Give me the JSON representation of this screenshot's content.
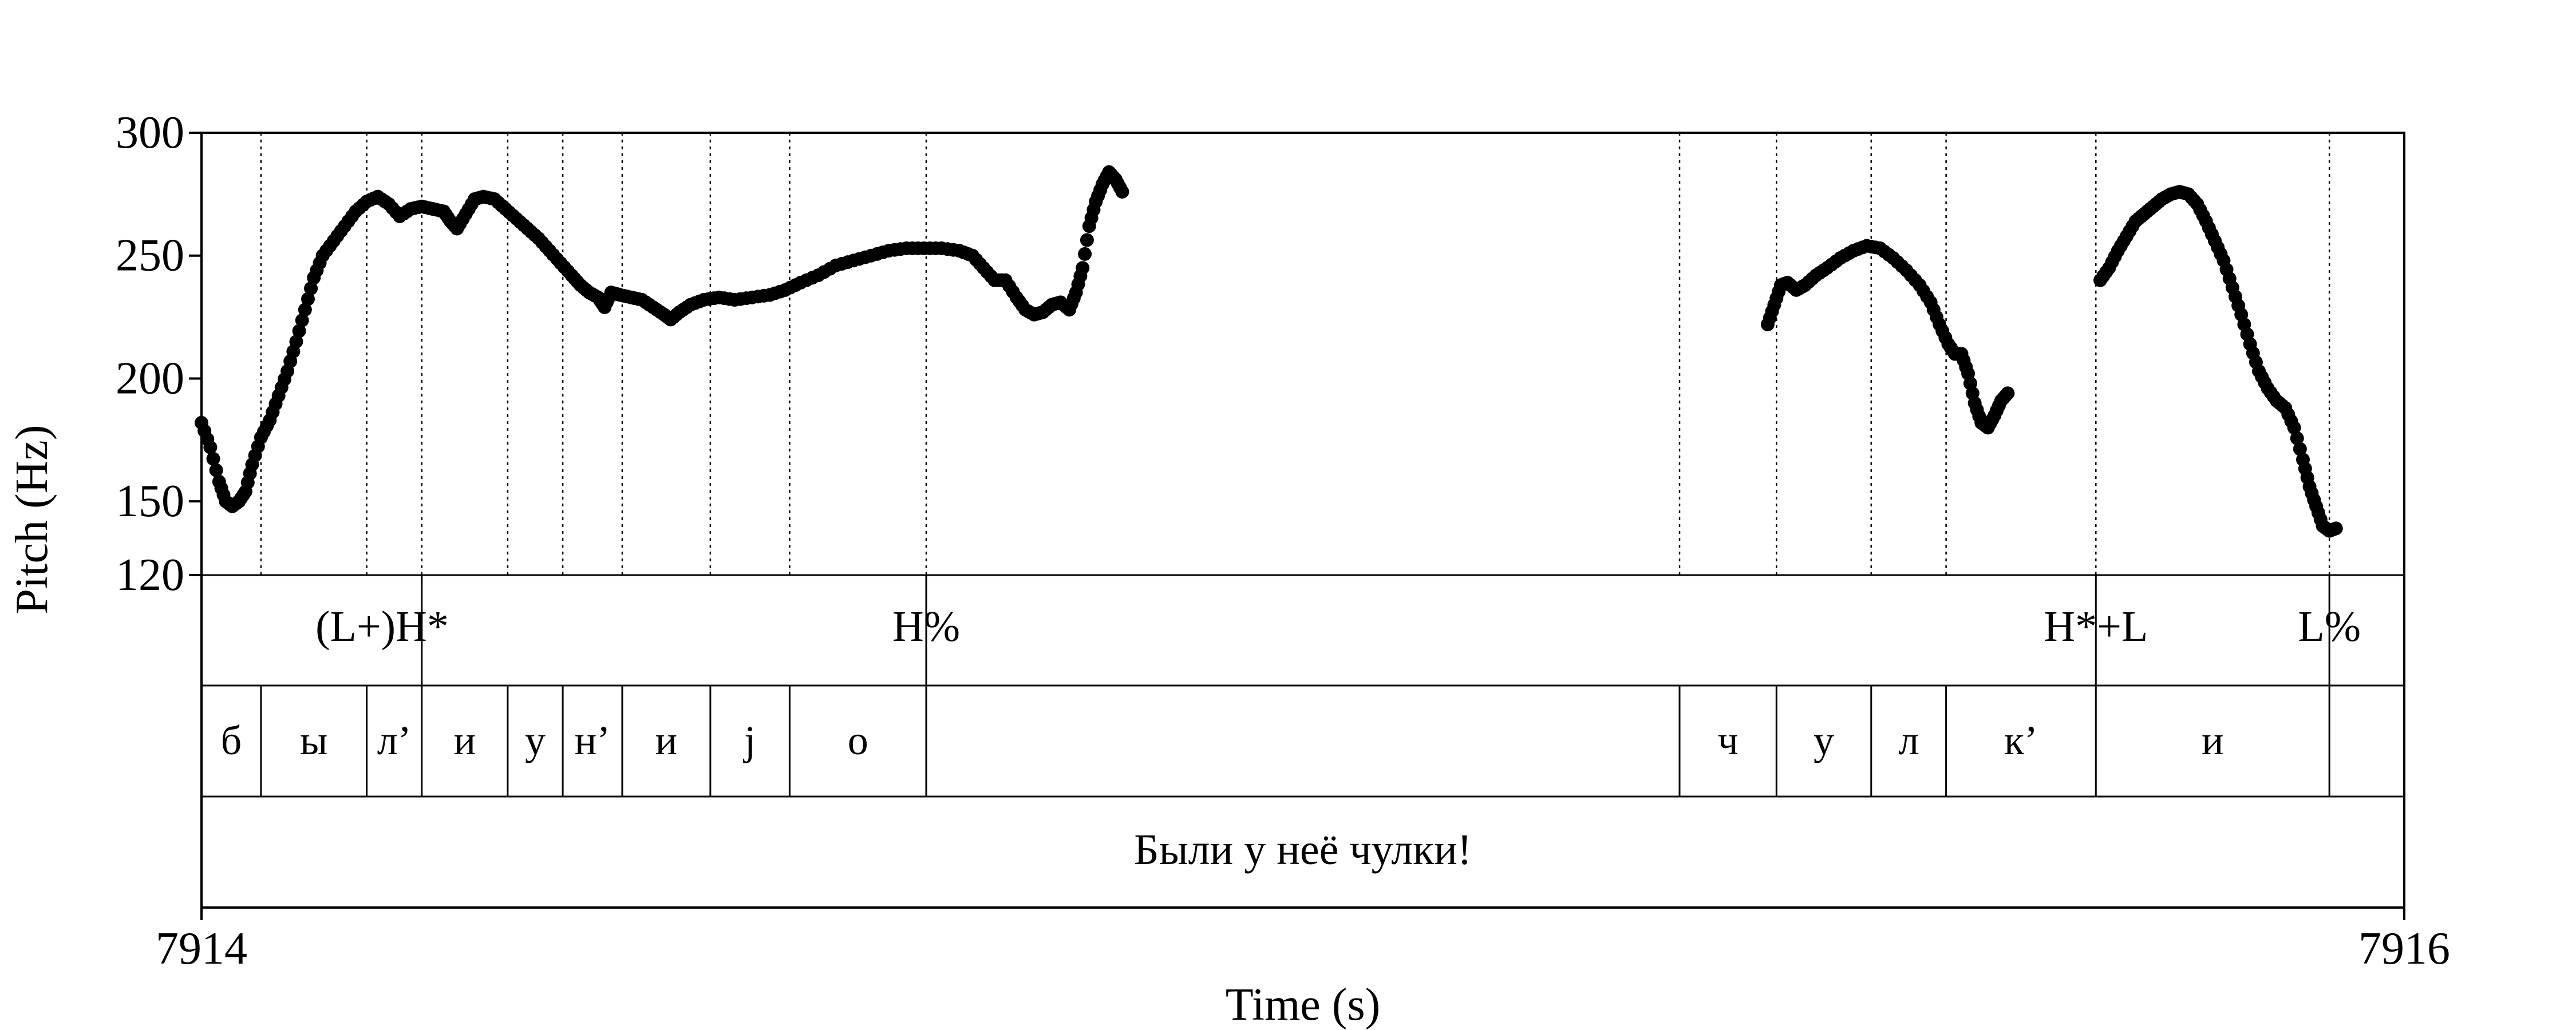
{
  "chart_data": {
    "type": "scatter",
    "title": "",
    "xlabel": "Time (s)",
    "ylabel": "Pitch (Hz)",
    "xlim": [
      0,
      1
    ],
    "ylim": [
      120,
      300
    ],
    "x_tick_labels": [
      "7914",
      "7916"
    ],
    "y_ticks": [
      120,
      150,
      200,
      250,
      300
    ],
    "grid": false,
    "tones": [
      "(L+)H*",
      "H%",
      "H*+L",
      "L%"
    ],
    "segments": [
      "б",
      "ы",
      "л’",
      "и",
      "у",
      "н’",
      "и",
      "j",
      "о",
      "ч",
      "у",
      "л",
      "к’",
      "и"
    ],
    "sentence": "Были у неё чулки!",
    "series": [
      {
        "values": [
          [
            0.0,
            182
          ],
          [
            0.004,
            172
          ],
          [
            0.008,
            158
          ],
          [
            0.011,
            150
          ],
          [
            0.014,
            148
          ],
          [
            0.017,
            150
          ],
          [
            0.02,
            154
          ],
          [
            0.023,
            165
          ],
          [
            0.027,
            176
          ],
          [
            0.031,
            183
          ],
          [
            0.035,
            193
          ],
          [
            0.039,
            203
          ],
          [
            0.043,
            215
          ],
          [
            0.047,
            228
          ],
          [
            0.051,
            241
          ],
          [
            0.055,
            250
          ],
          [
            0.06,
            256
          ],
          [
            0.065,
            262
          ],
          [
            0.07,
            268
          ],
          [
            0.075,
            272
          ],
          [
            0.08,
            274
          ],
          [
            0.085,
            271
          ],
          [
            0.09,
            266
          ],
          [
            0.095,
            269
          ],
          [
            0.1,
            270
          ],
          [
            0.105,
            269
          ],
          [
            0.11,
            268
          ],
          [
            0.113,
            264
          ],
          [
            0.116,
            261
          ],
          [
            0.12,
            267
          ],
          [
            0.124,
            273
          ],
          [
            0.128,
            274
          ],
          [
            0.133,
            273
          ],
          [
            0.138,
            269
          ],
          [
            0.143,
            265
          ],
          [
            0.148,
            261
          ],
          [
            0.153,
            257
          ],
          [
            0.158,
            252
          ],
          [
            0.163,
            247
          ],
          [
            0.168,
            242
          ],
          [
            0.172,
            238
          ],
          [
            0.176,
            235
          ],
          [
            0.18,
            233
          ],
          [
            0.183,
            229
          ],
          [
            0.186,
            235
          ],
          [
            0.19,
            234
          ],
          [
            0.195,
            233
          ],
          [
            0.2,
            232
          ],
          [
            0.205,
            229
          ],
          [
            0.21,
            226
          ],
          [
            0.213,
            224
          ],
          [
            0.217,
            227
          ],
          [
            0.222,
            230
          ],
          [
            0.228,
            232
          ],
          [
            0.235,
            233
          ],
          [
            0.242,
            232
          ],
          [
            0.25,
            233
          ],
          [
            0.258,
            234
          ],
          [
            0.265,
            236
          ],
          [
            0.272,
            239
          ],
          [
            0.28,
            242
          ],
          [
            0.288,
            246
          ],
          [
            0.296,
            248
          ],
          [
            0.304,
            250
          ],
          [
            0.312,
            252
          ],
          [
            0.32,
            253
          ],
          [
            0.328,
            253
          ],
          [
            0.336,
            253
          ],
          [
            0.344,
            252
          ],
          [
            0.35,
            250
          ],
          [
            0.355,
            245
          ],
          [
            0.36,
            240
          ],
          [
            0.365,
            240
          ],
          [
            0.37,
            233
          ],
          [
            0.374,
            228
          ],
          [
            0.378,
            226
          ],
          [
            0.382,
            227
          ],
          [
            0.386,
            230
          ],
          [
            0.39,
            231
          ],
          [
            0.394,
            228
          ],
          [
            0.397,
            235
          ],
          [
            0.4,
            245
          ],
          [
            0.403,
            262
          ],
          [
            0.406,
            272
          ],
          [
            0.409,
            279
          ],
          [
            0.412,
            284
          ],
          [
            0.415,
            281
          ],
          [
            0.418,
            276
          ],
          [
            0.711,
            222
          ],
          [
            0.714,
            230
          ],
          [
            0.717,
            238
          ],
          [
            0.72,
            239
          ],
          [
            0.724,
            236
          ],
          [
            0.728,
            238
          ],
          [
            0.733,
            242
          ],
          [
            0.738,
            245
          ],
          [
            0.744,
            249
          ],
          [
            0.75,
            252
          ],
          [
            0.756,
            254
          ],
          [
            0.762,
            253
          ],
          [
            0.768,
            249
          ],
          [
            0.774,
            244
          ],
          [
            0.78,
            238
          ],
          [
            0.785,
            231
          ],
          [
            0.789,
            222
          ],
          [
            0.793,
            214
          ],
          [
            0.796,
            210
          ],
          [
            0.799,
            210
          ],
          [
            0.802,
            202
          ],
          [
            0.805,
            190
          ],
          [
            0.808,
            182
          ],
          [
            0.811,
            180
          ],
          [
            0.814,
            185
          ],
          [
            0.817,
            191
          ],
          [
            0.82,
            194
          ],
          [
            0.862,
            240
          ],
          [
            0.866,
            245
          ],
          [
            0.87,
            252
          ],
          [
            0.874,
            258
          ],
          [
            0.878,
            264
          ],
          [
            0.882,
            267
          ],
          [
            0.886,
            270
          ],
          [
            0.89,
            273
          ],
          [
            0.894,
            275
          ],
          [
            0.898,
            276
          ],
          [
            0.902,
            275
          ],
          [
            0.906,
            271
          ],
          [
            0.91,
            264
          ],
          [
            0.914,
            256
          ],
          [
            0.918,
            248
          ],
          [
            0.922,
            237
          ],
          [
            0.926,
            226
          ],
          [
            0.93,
            214
          ],
          [
            0.934,
            203
          ],
          [
            0.938,
            196
          ],
          [
            0.942,
            191
          ],
          [
            0.946,
            188
          ],
          [
            0.95,
            180
          ],
          [
            0.954,
            167
          ],
          [
            0.957,
            156
          ],
          [
            0.96,
            148
          ],
          [
            0.963,
            140
          ],
          [
            0.966,
            138
          ],
          [
            0.969,
            139
          ]
        ]
      }
    ]
  }
}
